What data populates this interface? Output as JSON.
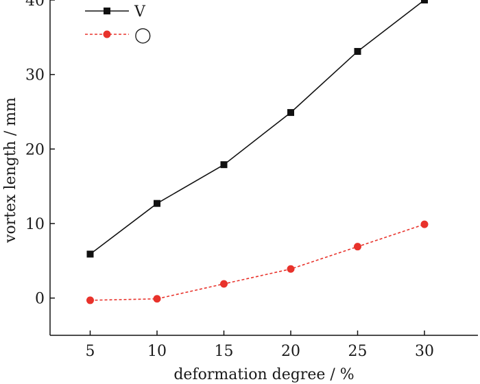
{
  "chart_data": {
    "type": "line",
    "xlabel": "deformation degree / %",
    "ylabel": "vortex length / mm",
    "x": [
      5,
      10,
      15,
      20,
      25,
      30
    ],
    "xlim": [
      2,
      34
    ],
    "ylim": [
      -5,
      40
    ],
    "xticks": [
      "5",
      "10",
      "15",
      "20",
      "25",
      "30"
    ],
    "yticks": [
      "0",
      "10",
      "20",
      "30",
      "40"
    ],
    "grid": false,
    "legend_position": "top-left",
    "series": [
      {
        "name": "V",
        "values": [
          5.9,
          12.7,
          17.9,
          24.9,
          33.1,
          40.0
        ],
        "color": "#111111",
        "marker": "square",
        "line_style": "solid"
      },
      {
        "name": "◯",
        "values": [
          -0.3,
          -0.1,
          1.9,
          3.9,
          6.9,
          9.9
        ],
        "color": "#e8322b",
        "marker": "circle",
        "line_style": "dashed"
      }
    ]
  }
}
